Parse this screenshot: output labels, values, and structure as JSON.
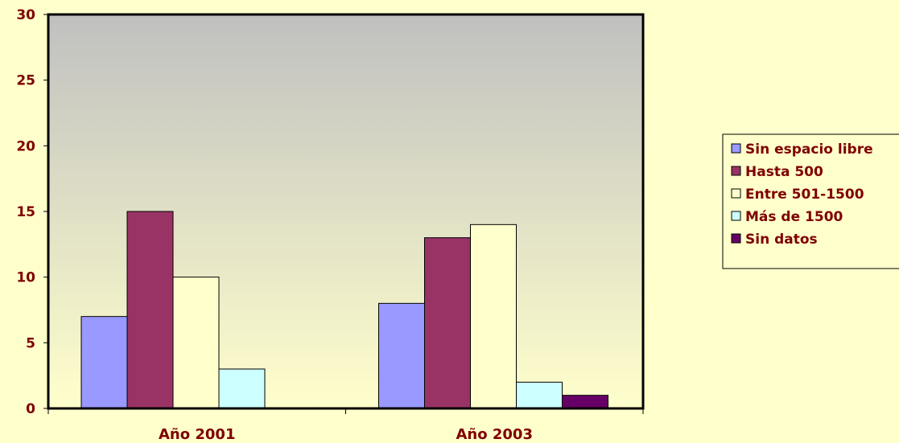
{
  "chart_data": {
    "type": "bar",
    "categories": [
      "Año 2001",
      "Año 2003"
    ],
    "series": [
      {
        "name": "Sin espacio libre",
        "values": [
          7,
          8
        ],
        "color": "#9999FF"
      },
      {
        "name": "Hasta 500",
        "values": [
          15,
          13
        ],
        "color": "#993366"
      },
      {
        "name": "Entre 501-1500",
        "values": [
          10,
          14
        ],
        "color": "#FFFFCC"
      },
      {
        "name": "Más de 1500",
        "values": [
          3,
          2
        ],
        "color": "#CCFFFF"
      },
      {
        "name": "Sin datos",
        "values": [
          0,
          1
        ],
        "color": "#660066"
      }
    ],
    "ylim": [
      0,
      30
    ],
    "yticks": [
      0,
      5,
      10,
      15,
      20,
      25,
      30
    ],
    "ytick_labels": [
      "0",
      "5",
      "10",
      "15",
      "20",
      "25",
      "30"
    ],
    "grid": false,
    "legend_position": "right",
    "colors": {
      "page_background": "#FFFFCC",
      "plot_gradient_top": "#C0C0C0",
      "plot_gradient_bottom": "#FFFFCC",
      "text": "#7F0000"
    }
  }
}
